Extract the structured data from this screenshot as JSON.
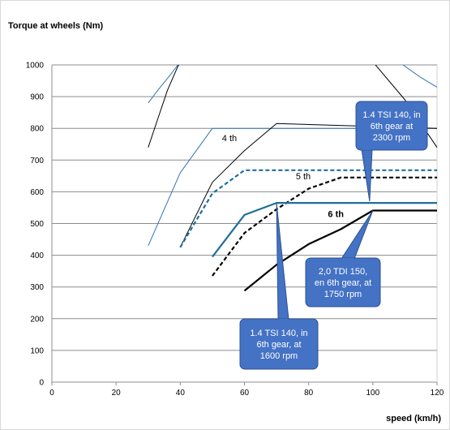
{
  "chart_data": {
    "type": "line",
    "ylabel": "Torque  at wheels (Nm)",
    "xlabel": "speed (km/h)",
    "xlim": [
      0,
      120
    ],
    "ylim": [
      0,
      1000
    ],
    "x_ticks": [
      "0",
      "20",
      "40",
      "60",
      "80",
      "100",
      "120"
    ],
    "y_ticks": [
      "0",
      "100",
      "200",
      "300",
      "400",
      "500",
      "600",
      "700",
      "800",
      "900",
      "1000"
    ],
    "grid": "horizontal",
    "legend": "none",
    "series": [
      {
        "color": "#2e75b6",
        "style": "thin",
        "points": [
          [
            30,
            880
          ],
          [
            33,
            920
          ],
          [
            37,
            970
          ],
          [
            40,
            1010
          ]
        ]
      },
      {
        "color": "#000000",
        "style": "thin",
        "points": [
          [
            30,
            740
          ],
          [
            33,
            830
          ],
          [
            36,
            920
          ],
          [
            39,
            990
          ],
          [
            40,
            1010
          ]
        ]
      },
      {
        "color": "#2e75b6",
        "style": "thin",
        "points": [
          [
            30,
            430
          ],
          [
            40,
            660
          ],
          [
            50,
            800
          ],
          [
            120,
            800
          ]
        ]
      },
      {
        "color": "#000000",
        "style": "thin",
        "points": [
          [
            40,
            425
          ],
          [
            50,
            630
          ],
          [
            60,
            730
          ],
          [
            70,
            815
          ],
          [
            120,
            800
          ]
        ]
      },
      {
        "color": "#1f6e9c",
        "style": "dashed-thick",
        "points": [
          [
            40,
            425
          ],
          [
            50,
            595
          ],
          [
            60,
            668
          ],
          [
            120,
            668
          ]
        ]
      },
      {
        "color": "#000000",
        "style": "dashed-thick",
        "points": [
          [
            50,
            335
          ],
          [
            60,
            470
          ],
          [
            70,
            545
          ],
          [
            80,
            610
          ],
          [
            90,
            645
          ],
          [
            120,
            645
          ]
        ]
      },
      {
        "color": "#1f6e9c",
        "style": "thick",
        "points": [
          [
            50,
            395
          ],
          [
            60,
            527
          ],
          [
            70,
            565
          ],
          [
            120,
            565
          ]
        ]
      },
      {
        "color": "#000000",
        "style": "thick",
        "points": [
          [
            60,
            288
          ],
          [
            70,
            370
          ],
          [
            80,
            435
          ],
          [
            90,
            482
          ],
          [
            100,
            541
          ],
          [
            120,
            541
          ]
        ]
      },
      {
        "color": "#2e75b6",
        "style": "thin",
        "points": [
          [
            108,
            1010
          ],
          [
            115,
            960
          ],
          [
            120,
            930
          ]
        ]
      },
      {
        "color": "#000000",
        "style": "thin",
        "points": [
          [
            100,
            1010
          ],
          [
            110,
            890
          ],
          [
            120,
            740
          ]
        ]
      }
    ],
    "series_labels": [
      {
        "text": "4 th",
        "at": [
          53,
          760
        ],
        "bold": false
      },
      {
        "text": "5 th",
        "at": [
          76,
          640
        ],
        "bold": false
      },
      {
        "text": "6 th",
        "at": [
          86,
          520
        ],
        "bold": true
      }
    ],
    "callouts": [
      {
        "lines": [
          "1.4 TSI 140, in",
          "6th gear at",
          "2300 rpm"
        ],
        "anchor": [
          99,
          570
        ]
      },
      {
        "lines": [
          "2,0 TDI 150,",
          "en 6th gear, at",
          "1750 rpm"
        ],
        "anchor": [
          100,
          541
        ]
      },
      {
        "lines": [
          "1.4 TSI 140, in",
          "6th gear,  at",
          "1600 rpm"
        ],
        "anchor": [
          70,
          565
        ]
      }
    ]
  }
}
